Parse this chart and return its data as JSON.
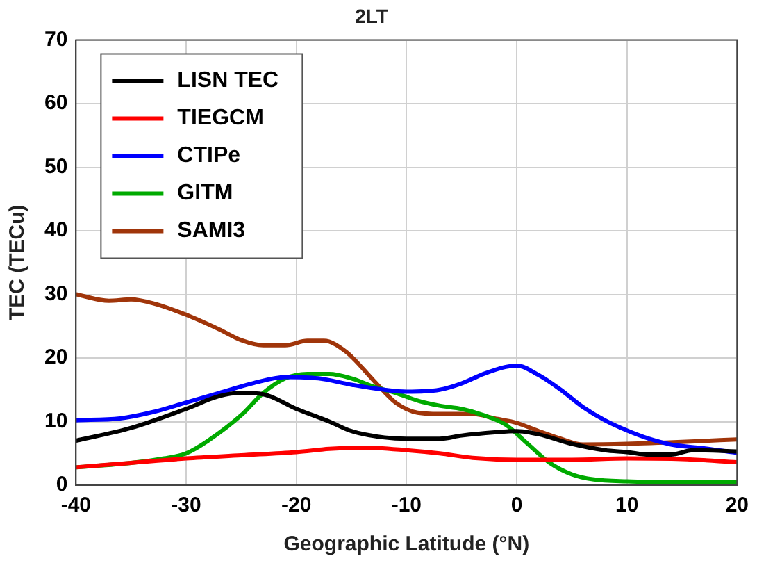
{
  "chart_data": {
    "type": "line",
    "title": "2LT",
    "xlabel": "Geographic Latitude (°N)",
    "ylabel": "TEC (TECu)",
    "xlim": [
      -40,
      20
    ],
    "xticks": [
      -40,
      -30,
      -20,
      -10,
      0,
      10,
      20
    ],
    "ylim": [
      0,
      70
    ],
    "yticks": [
      0,
      10,
      20,
      30,
      40,
      50,
      60,
      70
    ],
    "grid": true,
    "legend": "top left",
    "marker": "none",
    "line_style": "solid",
    "series": [
      {
        "name": "LISN TEC",
        "color": "#000000",
        "x": [
          -40,
          -35,
          -30,
          -27,
          -25,
          -23,
          -20,
          -17,
          -15,
          -12,
          -10,
          -7,
          -5,
          -2,
          0,
          2,
          5,
          8,
          10,
          12,
          14,
          16,
          20
        ],
        "values": [
          7,
          9,
          12,
          14,
          14.5,
          14.3,
          12,
          10,
          8.5,
          7.5,
          7.3,
          7.3,
          7.8,
          8.3,
          8.5,
          8,
          6.5,
          5.5,
          5.2,
          4.8,
          4.8,
          5.5,
          5.3
        ]
      },
      {
        "name": "TIEGCM",
        "color": "#ff0000",
        "x": [
          -40,
          -35,
          -30,
          -25,
          -20,
          -17,
          -14,
          -10,
          -7,
          -4,
          0,
          5,
          10,
          15,
          20
        ],
        "values": [
          2.8,
          3.5,
          4.2,
          4.7,
          5.2,
          5.7,
          5.9,
          5.5,
          5,
          4.3,
          4,
          4,
          4.2,
          4.1,
          3.6
        ]
      },
      {
        "name": "CTIPe",
        "color": "#0000ff",
        "x": [
          -40,
          -36,
          -33,
          -30,
          -27,
          -24,
          -21,
          -18,
          -15,
          -12,
          -10,
          -7,
          -5,
          -3,
          -1,
          0,
          2,
          4,
          6,
          8,
          10,
          12,
          14,
          17,
          20
        ],
        "values": [
          10.2,
          10.5,
          11.5,
          13,
          14.5,
          16,
          17,
          16.8,
          15.8,
          15,
          14.7,
          15,
          16,
          17.5,
          18.6,
          18.8,
          17.3,
          15,
          12.3,
          10.2,
          8.6,
          7.3,
          6.4,
          5.8,
          5.1
        ]
      },
      {
        "name": "GITM",
        "color": "#00aa00",
        "x": [
          -40,
          -35,
          -32,
          -30,
          -28,
          -25,
          -23,
          -21,
          -19,
          -17,
          -15,
          -13,
          -11,
          -9,
          -7,
          -5,
          -3,
          -1,
          1,
          3,
          5,
          7,
          10,
          15,
          20
        ],
        "values": [
          2.8,
          3.5,
          4.2,
          5,
          7,
          11,
          14.5,
          16.8,
          17.5,
          17.5,
          16.8,
          15.5,
          14.5,
          13.3,
          12.5,
          12,
          11,
          9.5,
          6.5,
          3.5,
          1.7,
          0.9,
          0.6,
          0.5,
          0.5
        ]
      },
      {
        "name": "SAMI3",
        "color": "#a0350a",
        "x": [
          -40,
          -37,
          -35,
          -33,
          -30,
          -27,
          -25,
          -23,
          -21,
          -19,
          -17.5,
          -15.5,
          -13,
          -11,
          -9,
          -7,
          -4,
          -2,
          0,
          2,
          4,
          6,
          10,
          15,
          20
        ],
        "values": [
          30,
          29,
          29.2,
          28.6,
          26.8,
          24.5,
          22.8,
          22,
          22,
          22.7,
          22.7,
          21,
          16.5,
          13,
          11.4,
          11.2,
          11.2,
          10.5,
          9.8,
          8.5,
          7.3,
          6.4,
          6.5,
          6.8,
          7.2
        ]
      }
    ]
  }
}
